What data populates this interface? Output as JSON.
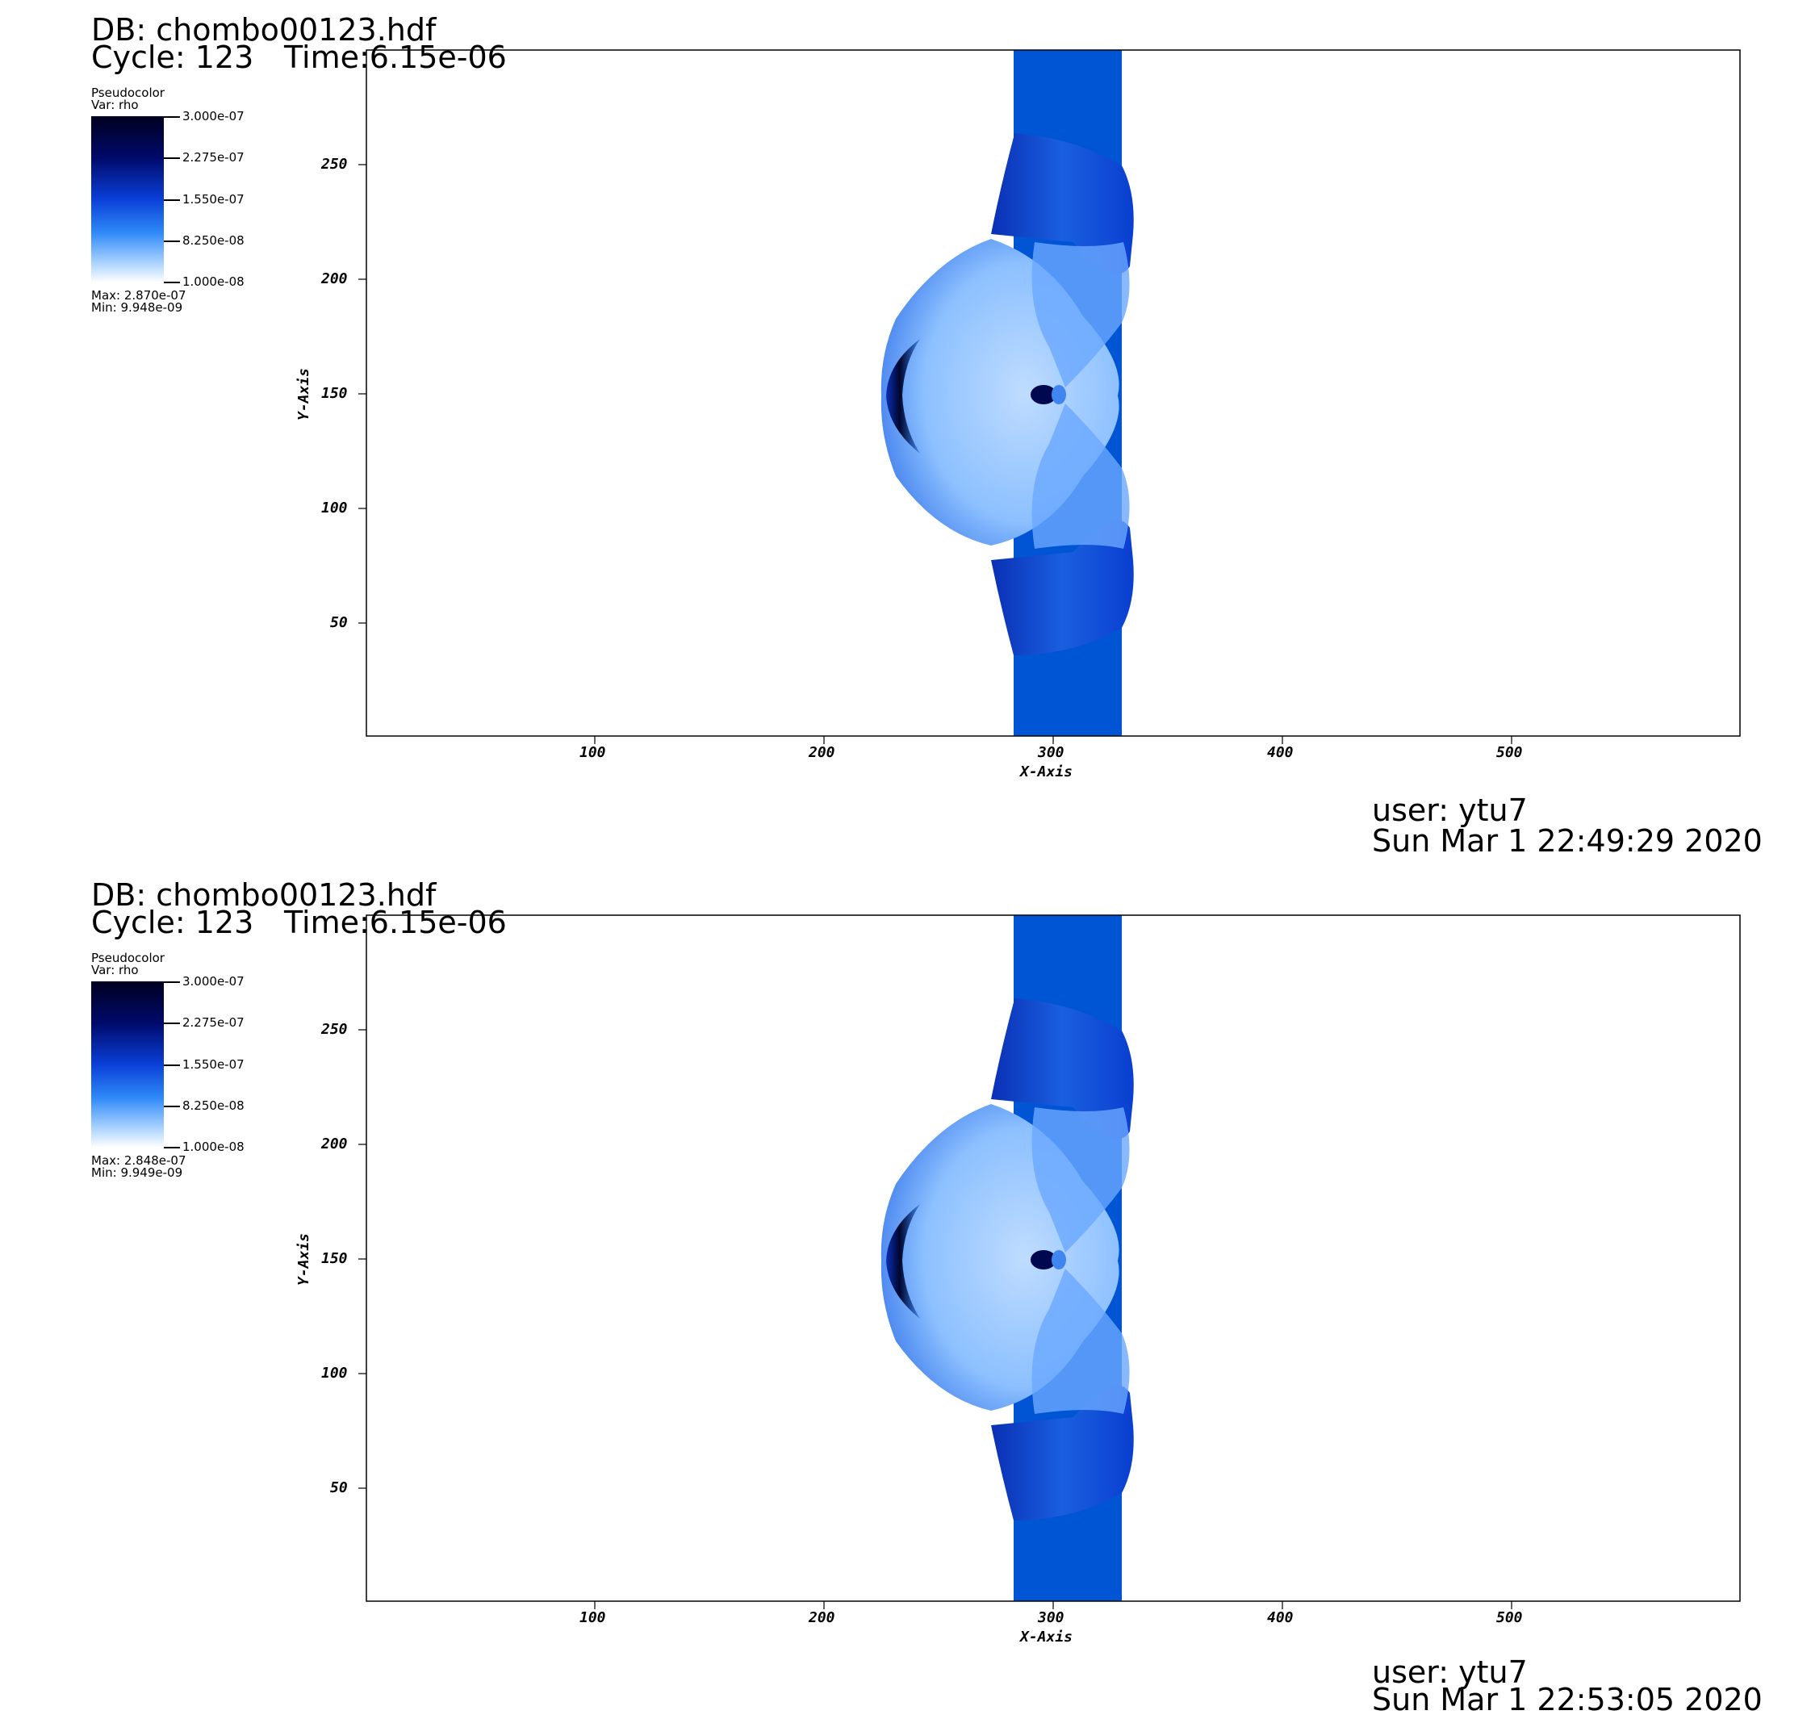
{
  "panels": [
    {
      "db": "DB: chombo00123.hdf",
      "cycle": "Cycle: 123",
      "time": "Time:6.15e-06",
      "legend": {
        "type": "Pseudocolor",
        "var": "Var: rho",
        "ticks": [
          "3.000e-07",
          "2.275e-07",
          "1.550e-07",
          "8.250e-08",
          "1.000e-08"
        ],
        "max": "Max:  2.870e-07",
        "min": "Min:  9.948e-09"
      },
      "user": "user: ytu7",
      "date": "Sun Mar  1 22:49:29 2020"
    },
    {
      "db": "DB: chombo00123.hdf",
      "cycle": "Cycle: 123",
      "time": "Time:6.15e-06",
      "legend": {
        "type": "Pseudocolor",
        "var": "Var: rho",
        "ticks": [
          "3.000e-07",
          "2.275e-07",
          "1.550e-07",
          "8.250e-08",
          "1.000e-08"
        ],
        "max": "Max:  2.848e-07",
        "min": "Min:  9.949e-09"
      },
      "user": "user: ytu7",
      "date": "Sun Mar  1 22:53:05 2020"
    }
  ],
  "axes": {
    "x_title": "X-Axis",
    "y_title": "Y-Axis",
    "x_ticks": [
      "100",
      "200",
      "300",
      "400",
      "500"
    ],
    "y_ticks": [
      "250",
      "200",
      "150",
      "100",
      "50"
    ]
  },
  "colors": {
    "band": "#0055d4",
    "darkest": "#00001e",
    "dark": "#000a6b",
    "mid": "#0a3fd8",
    "light": "#2f8af8",
    "pale": "#a8d2ff"
  }
}
